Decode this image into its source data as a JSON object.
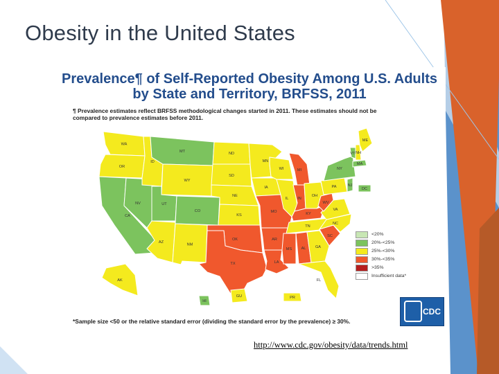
{
  "slide": {
    "title": "Obesity in the United States",
    "link": "http://www.cdc.gov/obesity/data/trends.html"
  },
  "figure": {
    "title_line1": "Prevalence¶ of Self-Reported Obesity Among U.S. Adults",
    "title_line2": "by State and Territory, BRFSS, 2011",
    "note_line1": "¶ Prevalence estimates reflect BRFSS methodological changes started in 2011. These estimates should not be",
    "note_line2": "compared to prevalence estimates before 2011.",
    "footnote": "*Sample size <50 or the relative standard error (dividing the standard error by the prevalence) ≥ 30%.",
    "logo_text": "CDC"
  },
  "legend": [
    {
      "label": "<20%",
      "color": "#c8e6b4"
    },
    {
      "label": "20%-<25%",
      "color": "#7cc35e"
    },
    {
      "label": "25%-<30%",
      "color": "#f4ea1e"
    },
    {
      "label": "30%-<35%",
      "color": "#f0582d"
    },
    {
      "label": ">35%",
      "color": "#b61e1e"
    },
    {
      "label": "Insufficient data*",
      "color": "#ffffff"
    }
  ],
  "states": [
    {
      "abbr": "WA",
      "category": "25%-<30%"
    },
    {
      "abbr": "OR",
      "category": "25%-<30%"
    },
    {
      "abbr": "CA",
      "category": "20%-<25%"
    },
    {
      "abbr": "NV",
      "category": "20%-<25%"
    },
    {
      "abbr": "ID",
      "category": "25%-<30%"
    },
    {
      "abbr": "MT",
      "category": "20%-<25%"
    },
    {
      "abbr": "WY",
      "category": "25%-<30%"
    },
    {
      "abbr": "UT",
      "category": "20%-<25%"
    },
    {
      "abbr": "CO",
      "category": "20%-<25%"
    },
    {
      "abbr": "AZ",
      "category": "25%-<30%"
    },
    {
      "abbr": "NM",
      "category": "25%-<30%"
    },
    {
      "abbr": "ND",
      "category": "25%-<30%"
    },
    {
      "abbr": "SD",
      "category": "25%-<30%"
    },
    {
      "abbr": "NE",
      "category": "25%-<30%"
    },
    {
      "abbr": "KS",
      "category": "25%-<30%"
    },
    {
      "abbr": "OK",
      "category": "30%-<35%"
    },
    {
      "abbr": "TX",
      "category": "30%-<35%"
    },
    {
      "abbr": "MN",
      "category": "25%-<30%"
    },
    {
      "abbr": "IA",
      "category": "25%-<30%"
    },
    {
      "abbr": "MO",
      "category": "30%-<35%"
    },
    {
      "abbr": "AR",
      "category": "30%-<35%"
    },
    {
      "abbr": "LA",
      "category": "30%-<35%"
    },
    {
      "abbr": "WI",
      "category": "25%-<30%"
    },
    {
      "abbr": "IL",
      "category": "25%-<30%"
    },
    {
      "abbr": "MI",
      "category": "30%-<35%"
    },
    {
      "abbr": "IN",
      "category": "30%-<35%"
    },
    {
      "abbr": "OH",
      "category": "25%-<30%"
    },
    {
      "abbr": "KY",
      "category": "30%-<35%"
    },
    {
      "abbr": "TN",
      "category": "25%-<30%"
    },
    {
      "abbr": "MS",
      "category": "30%-<35%"
    },
    {
      "abbr": "AL",
      "category": "30%-<35%"
    },
    {
      "abbr": "GA",
      "category": "25%-<30%"
    },
    {
      "abbr": "FL",
      "category": "25%-<30%"
    },
    {
      "abbr": "SC",
      "category": "30%-<35%"
    },
    {
      "abbr": "NC",
      "category": "25%-<30%"
    },
    {
      "abbr": "VA",
      "category": "25%-<30%"
    },
    {
      "abbr": "WV",
      "category": "30%-<35%"
    },
    {
      "abbr": "PA",
      "category": "25%-<30%"
    },
    {
      "abbr": "NY",
      "category": "20%-<25%"
    },
    {
      "abbr": "VT",
      "category": "20%-<25%"
    },
    {
      "abbr": "NH",
      "category": "25%-<30%"
    },
    {
      "abbr": "ME",
      "category": "25%-<30%"
    },
    {
      "abbr": "MA",
      "category": "20%-<25%"
    },
    {
      "abbr": "NJ",
      "category": "20%-<25%"
    },
    {
      "abbr": "DC",
      "category": "20%-<25%"
    },
    {
      "abbr": "AK",
      "category": "25%-<30%"
    },
    {
      "abbr": "HI",
      "category": "20%-<25%"
    },
    {
      "abbr": "GU",
      "category": "25%-<30%"
    },
    {
      "abbr": "PR",
      "category": "25%-<30%"
    }
  ],
  "colors": {
    "title_text": "#2f3b4c",
    "figure_title": "#234d8c",
    "decor_blue": "#3e7fc2",
    "decor_orange": "#d9622b",
    "decor_brown": "#b65a28"
  }
}
